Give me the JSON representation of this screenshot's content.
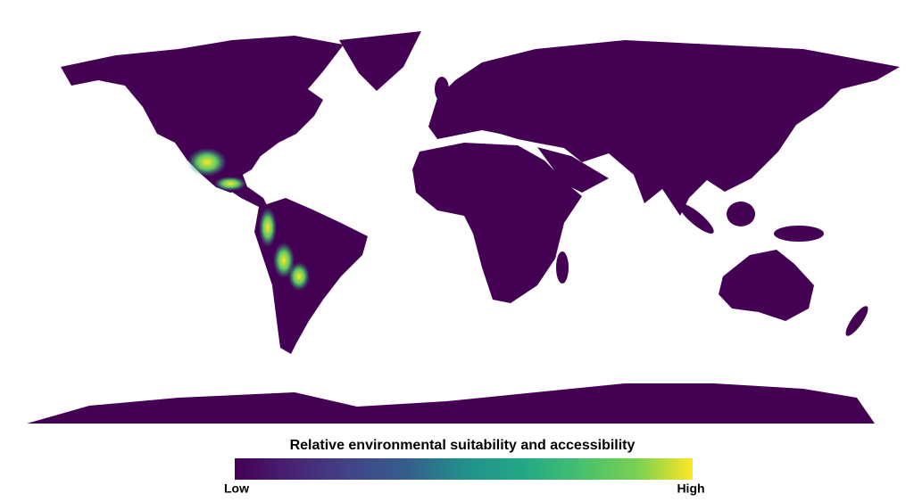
{
  "legend": {
    "title": "Relative environmental suitability and accessibility",
    "low_label": "Low",
    "high_label": "High"
  }
}
